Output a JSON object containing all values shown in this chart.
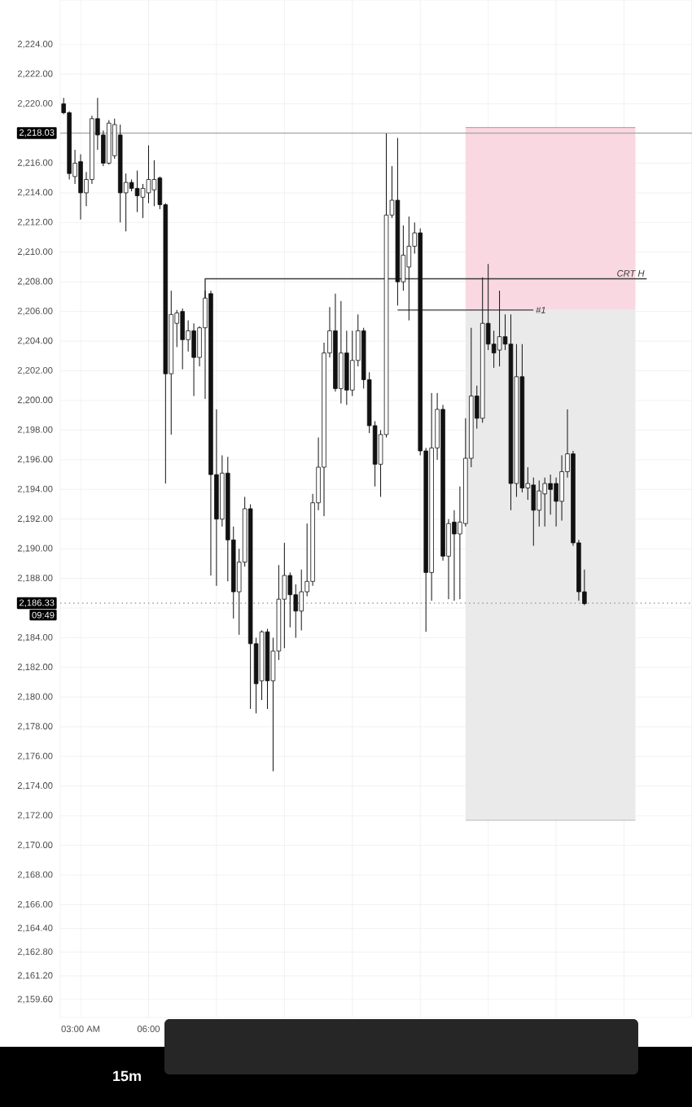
{
  "chart_data": {
    "type": "candlestick",
    "color": "#111111",
    "x": [
      2.25,
      2.5,
      2.75,
      3.0,
      3.25,
      3.5,
      3.75,
      4.0,
      4.25,
      4.5,
      4.75,
      5.0,
      5.25,
      5.5,
      5.75,
      6.0,
      6.25,
      6.5,
      6.75,
      7.0,
      7.25,
      7.5,
      7.75,
      8.0,
      8.25,
      8.5,
      8.75,
      9.0,
      9.25,
      9.5,
      9.75,
      10.0,
      10.25,
      10.5,
      10.75,
      11.0,
      11.25,
      11.5,
      11.75,
      12.0,
      12.25,
      12.5,
      12.75,
      13.0,
      13.25,
      13.5,
      13.75,
      14.0,
      14.25,
      14.5,
      14.75,
      15.0,
      15.25,
      15.5,
      15.75,
      16.0,
      16.25,
      16.5,
      16.75,
      17.0,
      17.25,
      17.5,
      17.75,
      18.0,
      18.25,
      18.5,
      18.75,
      19.0,
      19.25,
      19.5,
      19.75,
      20.0,
      20.25,
      20.5,
      20.75,
      21.0,
      21.25,
      21.5,
      21.75,
      22.0,
      22.25,
      22.5,
      22.75,
      23.0,
      23.25,
      23.5,
      23.75,
      24.0,
      24.25,
      24.5,
      24.75,
      25.0,
      25.25
    ],
    "ohlc": [
      [
        2220.0,
        2220.4,
        2219.3,
        2219.4
      ],
      [
        2219.4,
        2219.5,
        2214.9,
        2215.3
      ],
      [
        2215.1,
        2216.9,
        2214.6,
        2216.0
      ],
      [
        2216.1,
        2216.6,
        2212.2,
        2214.0
      ],
      [
        2214.0,
        2215.4,
        2213.1,
        2214.9
      ],
      [
        2214.9,
        2219.2,
        2214.6,
        2219.0
      ],
      [
        2219.0,
        2220.4,
        2216.9,
        2217.9
      ],
      [
        2217.9,
        2218.2,
        2215.8,
        2216.0
      ],
      [
        2216.0,
        2218.9,
        2215.9,
        2218.7
      ],
      [
        2216.5,
        2219.0,
        2216.3,
        2218.6
      ],
      [
        2217.9,
        2218.6,
        2212.0,
        2214.0
      ],
      [
        2214.0,
        2215.3,
        2211.4,
        2214.7
      ],
      [
        2214.7,
        2214.9,
        2214.1,
        2214.3
      ],
      [
        2214.3,
        2215.5,
        2212.7,
        2213.8
      ],
      [
        2213.7,
        2214.6,
        2212.3,
        2214.3
      ],
      [
        2214.0,
        2217.2,
        2213.3,
        2214.9
      ],
      [
        2214.2,
        2216.2,
        2213.1,
        2214.9
      ],
      [
        2215.0,
        2215.1,
        2212.9,
        2213.2
      ],
      [
        2213.2,
        2213.3,
        2194.4,
        2201.8
      ],
      [
        2201.8,
        2207.4,
        2197.7,
        2205.8
      ],
      [
        2205.2,
        2206.1,
        2203.6,
        2205.9
      ],
      [
        2206.0,
        2206.2,
        2202.1,
        2204.1
      ],
      [
        2204.1,
        2205.4,
        2203.3,
        2204.7
      ],
      [
        2204.7,
        2205.2,
        2200.3,
        2202.9
      ],
      [
        2202.9,
        2205.0,
        2202.3,
        2204.9
      ],
      [
        2204.9,
        2207.4,
        2200.1,
        2206.9
      ],
      [
        2207.2,
        2207.4,
        2188.2,
        2195.0
      ],
      [
        2195.0,
        2199.4,
        2187.5,
        2192.0
      ],
      [
        2192.0,
        2196.3,
        2191.5,
        2195.1
      ],
      [
        2195.1,
        2196.2,
        2187.8,
        2190.6
      ],
      [
        2190.6,
        2191.5,
        2185.3,
        2187.1
      ],
      [
        2187.1,
        2190.0,
        2184.2,
        2189.1
      ],
      [
        2189.1,
        2193.5,
        2188.8,
        2192.7
      ],
      [
        2192.7,
        2193.0,
        2179.2,
        2183.6
      ],
      [
        2183.6,
        2184.0,
        2178.9,
        2180.9
      ],
      [
        2181.1,
        2184.5,
        2179.8,
        2184.4
      ],
      [
        2184.4,
        2184.6,
        2179.2,
        2181.1
      ],
      [
        2181.1,
        2184.0,
        2175.0,
        2183.1
      ],
      [
        2183.1,
        2188.9,
        2182.5,
        2186.6
      ],
      [
        2186.6,
        2190.4,
        2183.3,
        2188.2
      ],
      [
        2188.2,
        2188.4,
        2184.7,
        2186.9
      ],
      [
        2186.9,
        2187.6,
        2184.0,
        2185.8
      ],
      [
        2185.8,
        2188.6,
        2184.5,
        2187.1
      ],
      [
        2187.1,
        2191.7,
        2186.8,
        2187.8
      ],
      [
        2187.8,
        2193.7,
        2187.5,
        2193.1
      ],
      [
        2193.1,
        2197.5,
        2192.6,
        2195.5
      ],
      [
        2195.5,
        2203.9,
        2192.2,
        2203.2
      ],
      [
        2203.2,
        2206.3,
        2202.9,
        2204.7
      ],
      [
        2204.7,
        2207.2,
        2200.6,
        2200.8
      ],
      [
        2200.8,
        2206.7,
        2199.8,
        2203.2
      ],
      [
        2203.2,
        2204.7,
        2199.7,
        2200.7
      ],
      [
        2200.7,
        2204.7,
        2200.3,
        2202.7
      ],
      [
        2202.7,
        2205.8,
        2202.3,
        2204.7
      ],
      [
        2204.7,
        2204.9,
        2200.8,
        2201.4
      ],
      [
        2201.4,
        2201.9,
        2197.8,
        2198.3
      ],
      [
        2198.3,
        2198.6,
        2194.2,
        2195.7
      ],
      [
        2195.7,
        2198.0,
        2193.5,
        2197.7
      ],
      [
        2197.7,
        2218.0,
        2197.5,
        2212.5
      ],
      [
        2212.5,
        2215.8,
        2212.3,
        2213.5
      ],
      [
        2213.5,
        2217.7,
        2206.4,
        2208.0
      ],
      [
        2208.0,
        2211.8,
        2207.4,
        2209.8
      ],
      [
        2209.0,
        2212.4,
        2205.4,
        2210.4
      ],
      [
        2210.4,
        2212.0,
        2209.9,
        2211.3
      ],
      [
        2211.3,
        2211.6,
        2196.3,
        2196.6
      ],
      [
        2196.6,
        2196.8,
        2184.4,
        2188.4
      ],
      [
        2188.4,
        2200.5,
        2186.5,
        2196.8
      ],
      [
        2196.8,
        2200.5,
        2196.0,
        2199.4
      ],
      [
        2199.4,
        2199.7,
        2189.2,
        2189.5
      ],
      [
        2189.5,
        2192.0,
        2186.6,
        2191.7
      ],
      [
        2191.8,
        2192.6,
        2186.5,
        2191.0
      ],
      [
        2191.0,
        2194.2,
        2186.6,
        2191.8
      ],
      [
        2191.7,
        2198.8,
        2191.5,
        2196.1
      ],
      [
        2196.1,
        2204.9,
        2195.5,
        2200.3
      ],
      [
        2200.3,
        2201.0,
        2198.1,
        2198.8
      ],
      [
        2198.8,
        2208.3,
        2198.5,
        2205.2
      ],
      [
        2205.2,
        2209.2,
        2203.4,
        2203.8
      ],
      [
        2203.8,
        2204.7,
        2202.2,
        2203.2
      ],
      [
        2203.4,
        2207.4,
        2202.3,
        2204.3
      ],
      [
        2204.3,
        2205.8,
        2203.4,
        2203.8
      ],
      [
        2203.8,
        2205.8,
        2192.6,
        2194.4
      ],
      [
        2194.4,
        2203.8,
        2193.5,
        2201.6
      ],
      [
        2201.6,
        2203.8,
        2193.8,
        2194.1
      ],
      [
        2194.1,
        2195.5,
        2193.3,
        2194.4
      ],
      [
        2194.3,
        2194.8,
        2190.2,
        2192.6
      ],
      [
        2192.6,
        2194.6,
        2191.5,
        2193.9
      ],
      [
        2193.7,
        2194.8,
        2191.5,
        2194.4
      ],
      [
        2194.4,
        2195.0,
        2192.3,
        2194.0
      ],
      [
        2194.4,
        2194.8,
        2191.5,
        2193.2
      ],
      [
        2193.2,
        2196.3,
        2191.9,
        2195.2
      ],
      [
        2195.2,
        2199.4,
        2194.8,
        2196.4
      ],
      [
        2196.4,
        2196.6,
        2190.2,
        2190.4
      ],
      [
        2190.4,
        2190.6,
        2186.5,
        2187.1
      ],
      [
        2187.1,
        2188.6,
        2186.2,
        2186.3
      ]
    ],
    "series": [
      {
        "type": "line",
        "x": [
          20.0,
          27.5
        ],
        "values": [
          2218.4,
          2218.4
        ],
        "lower": [
          2206.1,
          2206.1
        ],
        "upper": [
          2218.4,
          2218.4
        ],
        "color": "#ee90ac"
      },
      {
        "type": "line",
        "x": [
          20.0,
          27.5
        ],
        "values": [
          2171.7,
          2171.7
        ],
        "lower": [
          2171.7,
          2171.7
        ],
        "upper": [
          2206.1,
          2206.1
        ],
        "color": "#c4c4c4"
      },
      {
        "type": "line",
        "name": "CRT H",
        "x": [
          8.5,
          8.5,
          28.0
        ],
        "values": [
          2206.9,
          2208.2,
          2208.2
        ],
        "color": "#3a3a3a"
      },
      {
        "type": "line",
        "name": "#1",
        "x": [
          17.0,
          23.0
        ],
        "values": [
          2206.1,
          2206.1
        ],
        "color": "#3a3a3a"
      }
    ],
    "ref_lines": [
      {
        "axis": "y",
        "value": 2218.03,
        "label": "2,218.03",
        "color": "#a6a6a6",
        "line_style": "solid"
      },
      {
        "axis": "y",
        "value": 2186.33,
        "label": "2,186.33",
        "color": "#9a9a9a",
        "line_style": "dotted"
      }
    ],
    "annotations": [
      "09:49",
      "15m"
    ],
    "xlim": [
      2.1,
      30.0
    ],
    "ylim": [
      2158.4,
      2227.0
    ],
    "xticks": [
      {
        "value": 3,
        "label": "03:00 AM"
      },
      {
        "value": 6,
        "label": "06:00"
      },
      {
        "value": 9,
        "label": null
      },
      {
        "value": 12,
        "label": null
      },
      {
        "value": 15,
        "label": null
      },
      {
        "value": 18,
        "label": null
      },
      {
        "value": 21,
        "label": null
      },
      {
        "value": 24,
        "label": null
      },
      {
        "value": 27,
        "label": null
      },
      {
        "value": 30,
        "label": null
      }
    ],
    "yticks": [
      {
        "value": 2224,
        "label": "2,224.00"
      },
      {
        "value": 2222,
        "label": "2,222.00"
      },
      {
        "value": 2220,
        "label": "2,220.00"
      },
      {
        "value": 2216,
        "label": "2,216.00"
      },
      {
        "value": 2214,
        "label": "2,214.00"
      },
      {
        "value": 2212,
        "label": "2,212.00"
      },
      {
        "value": 2210,
        "label": "2,210.00"
      },
      {
        "value": 2208,
        "label": "2,208.00"
      },
      {
        "value": 2206,
        "label": "2,206.00"
      },
      {
        "value": 2204,
        "label": "2,204.00"
      },
      {
        "value": 2202,
        "label": "2,202.00"
      },
      {
        "value": 2200,
        "label": "2,200.00"
      },
      {
        "value": 2198,
        "label": "2,198.00"
      },
      {
        "value": 2196,
        "label": "2,196.00"
      },
      {
        "value": 2194,
        "label": "2,194.00"
      },
      {
        "value": 2192,
        "label": "2,192.00"
      },
      {
        "value": 2190,
        "label": "2,190.00"
      },
      {
        "value": 2188,
        "label": "2,188.00"
      },
      {
        "value": 2186,
        "label": null
      },
      {
        "value": 2184,
        "label": "2,184.00"
      },
      {
        "value": 2182,
        "label": "2,182.00"
      },
      {
        "value": 2180,
        "label": "2,180.00"
      },
      {
        "value": 2178,
        "label": "2,178.00"
      },
      {
        "value": 2176,
        "label": "2,176.00"
      },
      {
        "value": 2174,
        "label": "2,174.00"
      },
      {
        "value": 2172,
        "label": "2,172.00"
      },
      {
        "value": 2170,
        "label": "2,170.00"
      },
      {
        "value": 2168,
        "label": "2,168.00"
      },
      {
        "value": 2166,
        "label": "2,166.00"
      },
      {
        "value": 2164.4,
        "label": "2,164.40"
      },
      {
        "value": 2162.8,
        "label": "2,162.80"
      },
      {
        "value": 2161.2,
        "label": "2,161.20"
      },
      {
        "value": 2159.6,
        "label": "2,159.60"
      }
    ],
    "grid": true
  }
}
